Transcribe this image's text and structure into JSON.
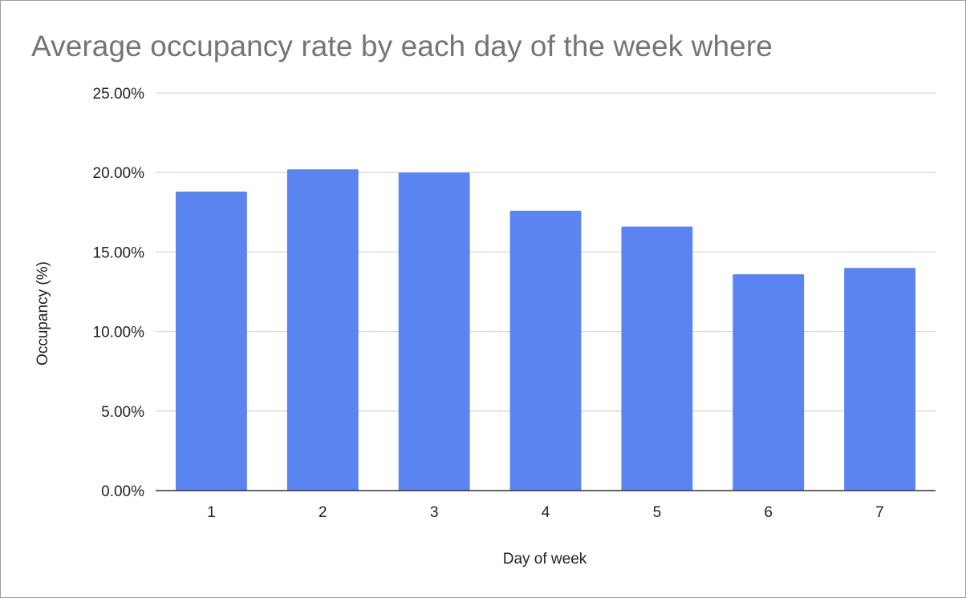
{
  "chart_data": {
    "type": "bar",
    "title": "Average occupancy rate by each day of the week where",
    "xlabel": "Day of week",
    "ylabel": "Occupancy (%)",
    "categories": [
      "1",
      "2",
      "3",
      "4",
      "5",
      "6",
      "7"
    ],
    "values": [
      18.8,
      20.2,
      20.0,
      17.6,
      16.6,
      13.6,
      14.0
    ],
    "ylim": [
      0,
      25
    ],
    "yticks": [
      "0.00%",
      "5.00%",
      "10.00%",
      "15.00%",
      "20.00%",
      "25.00%"
    ],
    "grid": true,
    "legend": "none",
    "colors": {
      "bar": "#5b84f1",
      "grid": "#d9d9d9",
      "axis": "#333333",
      "title": "#757575"
    }
  }
}
